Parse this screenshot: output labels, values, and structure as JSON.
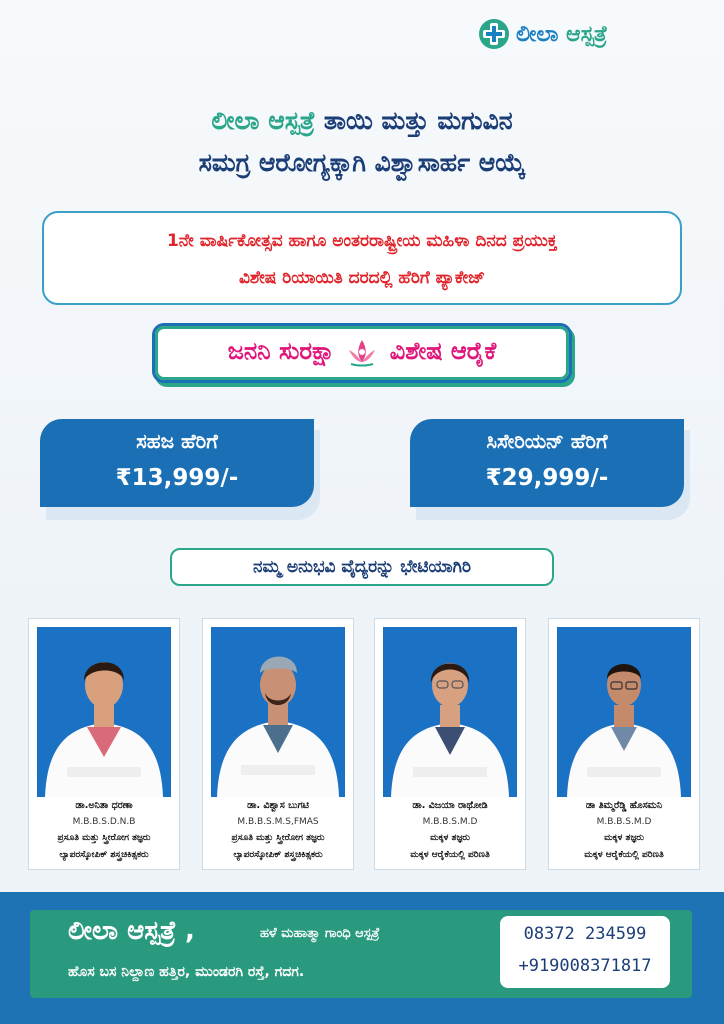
{
  "logo": {
    "primary": "ಲೀಲಾ",
    "secondary": "ಆಸ್ಪತ್ರೆ"
  },
  "headline": {
    "line1_brand": "ಲೀಲಾ ಆಸ್ಪತ್ರೆ",
    "line1_rest": "ತಾಯಿ ಮತ್ತು ಮಗುವಿನ",
    "line2": "ಸಮಗ್ರ ಆರೋಗ್ಯಕ್ಕಾಗಿ ವಿಶ್ವಾಸಾರ್ಹ ಆಯ್ಕೆ"
  },
  "offer": {
    "line1": "1ನೇ ವಾರ್ಷಿಕೋತ್ಸವ ಹಾಗೂ ಅಂತರರಾಷ್ಟ್ರೀಯ ಮಹಿಳಾ ದಿನದ ಪ್ರಯುಕ್ತ",
    "line2": "ವಿಶೇಷ ರಿಯಾಯಿತಿ ದರದಲ್ಲಿ ಹೆರಿಗೆ ಪ್ಯಾಕೇಜ್"
  },
  "scheme": {
    "left": "ಜನನಿ ಸುರಕ್ಷಾ",
    "right": "ವಿಶೇಷ ಆರೈಕೆ"
  },
  "packages": [
    {
      "title": "ಸಹಜ ಹೆರಿಗೆ",
      "price": "₹13,999/-"
    },
    {
      "title": "ಸಿಸೇರಿಯನ್ ಹೆರಿಗೆ",
      "price": "₹29,999/-"
    }
  ],
  "meet_doctors": "ನಮ್ಮ ಅನುಭವಿ ವೈದ್ಯರನ್ನು ಭೇಟಿಯಾಗಿರಿ",
  "doctors": [
    {
      "name": "ಡಾ.ಅನಿತಾ ಧರಣಾ",
      "degree": "M.B.B.S.D.N.B",
      "spec1": "ಪ್ರಸೂತಿ ಮತ್ತು ಸ್ತ್ರೀರೋಗ ತಜ್ಞರು",
      "spec2": "ಲ್ಯಾಪರಸ್ಕೋಪಿಕ್ ಶಸ್ತ್ರಚಿಕಿತ್ಸಕರು"
    },
    {
      "name": "ಡಾ. ವಿಶ್ವಾಸ ಬುಗಟಿ",
      "degree": "M.B.B.S.M.S,FMAS",
      "spec1": "ಪ್ರಸೂತಿ ಮತ್ತು ಸ್ತ್ರೀರೋಗ ತಜ್ಞರು",
      "spec2": "ಲ್ಯಾಪರಸ್ಕೋಪಿಕ್ ಶಸ್ತ್ರಚಿಕಿತ್ಸಕರು"
    },
    {
      "name": "ಡಾ. ವಿಜಯಾ ರಾಥೋಡಿ",
      "degree": "M.B.B.S.M.D",
      "spec1": "ಮಕ್ಕಳ ತಜ್ಞರು",
      "spec2": "ಮಕ್ಕಳ ಆರೈಕೆಯಲ್ಲಿ ಪರಿಣತಿ"
    },
    {
      "name": "ಡಾ ತಿಮ್ಮರೆಡ್ಡಿ ಹೊಸಮನಿ",
      "degree": "M.B.B.S.M.D",
      "spec1": "ಮಕ್ಕಳ ತಜ್ಞರು",
      "spec2": "ಮಕ್ಕಳ ಆರೈಕೆಯಲ್ಲಿ ಪರಿಣತಿ"
    }
  ],
  "footer": {
    "name": "ಲೀಲಾ ಆಸ್ಪತ್ರೆ ,",
    "old_name": "ಹಳೆ ಮಹಾತ್ಮಾ ಗಾಂಧಿ ಆಸ್ಪತ್ರೆ",
    "address": "ಹೊಸ ಬಸ ನಿಲ್ದಾಣ ಹತ್ತಿರ, ಮುಂಡರಗಿ ರಸ್ತೆ, ಗದಗ.",
    "phone1": "08372 234599",
    "phone2": "+919008371817"
  },
  "colors": {
    "brand_blue": "#1a6fb5",
    "brand_green": "#2ba68a",
    "offer_red": "#e0242b",
    "scheme_pink": "#e0177b"
  }
}
